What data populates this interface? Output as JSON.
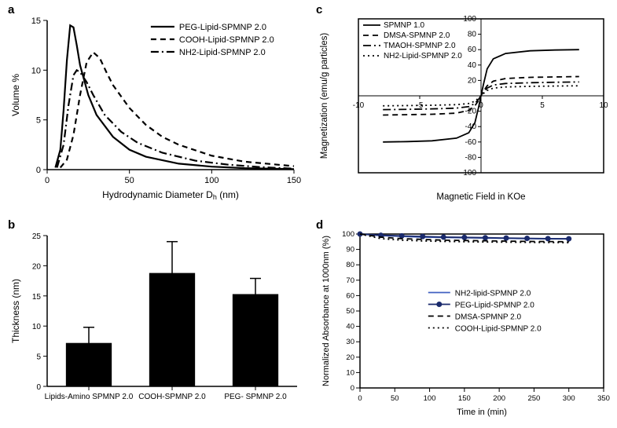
{
  "colors": {
    "background": "#ffffff",
    "axis": "#000000",
    "text": "#000000",
    "bar_fill": "#000000",
    "error_bar": "#000000",
    "line_black": "#000000",
    "line_blue": "#4060c0",
    "line_navy": "#1a2a6c"
  },
  "panel_label_fontsize": 15,
  "panel_a": {
    "label": "a",
    "type": "line",
    "xlabel": "Hydrodynamic Diameter D",
    "xlabel_sub": "h",
    "xlabel_unit": " (nm)",
    "ylabel": "Volume %",
    "xlim": [
      0,
      150
    ],
    "ylim": [
      0,
      15
    ],
    "xtick_step": 50,
    "ytick_step": 5,
    "axis_fontsize": 12,
    "tick_fontsize": 11,
    "legend_fontsize": 11,
    "line_width": 2.2,
    "series": [
      {
        "name": "PEG-Lipid-SPMNP 2.0",
        "dash": "solid",
        "color": "#000000",
        "points": [
          [
            5,
            0.2
          ],
          [
            8,
            2
          ],
          [
            10,
            6
          ],
          [
            12,
            11
          ],
          [
            14,
            14.5
          ],
          [
            16,
            14.3
          ],
          [
            18,
            12.5
          ],
          [
            20,
            10.5
          ],
          [
            25,
            7.5
          ],
          [
            30,
            5.5
          ],
          [
            40,
            3.3
          ],
          [
            50,
            2.0
          ],
          [
            60,
            1.3
          ],
          [
            80,
            0.6
          ],
          [
            100,
            0.3
          ],
          [
            120,
            0.15
          ],
          [
            150,
            0.05
          ]
        ]
      },
      {
        "name": "COOH-Lipid-SPMNP 2.0",
        "dash": "dashed",
        "color": "#000000",
        "points": [
          [
            8,
            0.2
          ],
          [
            12,
            1.0
          ],
          [
            16,
            3.5
          ],
          [
            20,
            7.5
          ],
          [
            24,
            10.8
          ],
          [
            28,
            11.8
          ],
          [
            32,
            11.2
          ],
          [
            36,
            9.8
          ],
          [
            40,
            8.5
          ],
          [
            50,
            6.2
          ],
          [
            60,
            4.5
          ],
          [
            70,
            3.3
          ],
          [
            80,
            2.5
          ],
          [
            100,
            1.4
          ],
          [
            120,
            0.8
          ],
          [
            150,
            0.35
          ]
        ]
      },
      {
        "name": "NH2-Lipid-SPMNP 2.0",
        "dash": "dashdot",
        "color": "#000000",
        "points": [
          [
            6,
            0.2
          ],
          [
            10,
            2.5
          ],
          [
            13,
            6.5
          ],
          [
            16,
            9.5
          ],
          [
            18,
            10.0
          ],
          [
            20,
            9.8
          ],
          [
            24,
            8.8
          ],
          [
            28,
            7.5
          ],
          [
            35,
            5.5
          ],
          [
            45,
            3.8
          ],
          [
            55,
            2.7
          ],
          [
            70,
            1.7
          ],
          [
            90,
            0.9
          ],
          [
            110,
            0.5
          ],
          [
            130,
            0.25
          ],
          [
            150,
            0.1
          ]
        ]
      }
    ]
  },
  "panel_b": {
    "label": "b",
    "type": "bar",
    "ylabel": "Thickness (nm)",
    "ylim": [
      0,
      25
    ],
    "ytick_step": 5,
    "axis_fontsize": 12,
    "tick_fontsize": 10,
    "bar_width": 0.55,
    "categories": [
      "Lipids-Amino SPMNP 2.0",
      "COOH-SPMNP 2.0",
      "PEG- SPMNP 2.0"
    ],
    "values": [
      7.2,
      18.8,
      15.3
    ],
    "errors": [
      2.6,
      5.2,
      2.6
    ],
    "bar_color": "#000000"
  },
  "panel_c": {
    "label": "c",
    "type": "line",
    "xlabel": "Magnetic Field in KOe",
    "ylabel": "Magnetization (emu/g particles)",
    "xlim": [
      -10,
      10
    ],
    "ylim": [
      -100,
      100
    ],
    "xtick_step": 5,
    "ytick_step": 20,
    "axis_fontsize": 11.5,
    "tick_fontsize": 10,
    "legend_fontsize": 10,
    "line_width": 1.8,
    "legend": [
      "SPMNP 1.0",
      "DMSA-SPMNP 2.0",
      "TMAOH-SPMNP 2.0",
      "NH2-Lipid-SPMNP 2.0"
    ],
    "series": [
      {
        "name": "SPMNP 1.0",
        "dash": "solid",
        "color": "#000000",
        "points": [
          [
            -8,
            -60
          ],
          [
            -6,
            -59.5
          ],
          [
            -4,
            -58.5
          ],
          [
            -2,
            -55
          ],
          [
            -1,
            -48
          ],
          [
            -0.5,
            -35
          ],
          [
            -0.2,
            -15
          ],
          [
            0,
            0
          ],
          [
            0.2,
            15
          ],
          [
            0.5,
            35
          ],
          [
            1,
            48
          ],
          [
            2,
            55
          ],
          [
            4,
            58.5
          ],
          [
            6,
            59.5
          ],
          [
            8,
            60
          ]
        ]
      },
      {
        "name": "DMSA-SPMNP 2.0",
        "dash": "dashed",
        "color": "#000000",
        "points": [
          [
            -8,
            -25
          ],
          [
            -6,
            -24.5
          ],
          [
            -4,
            -24
          ],
          [
            -2,
            -22.5
          ],
          [
            -1,
            -19
          ],
          [
            -0.5,
            -13
          ],
          [
            -0.2,
            -6
          ],
          [
            0,
            0
          ],
          [
            0.2,
            6
          ],
          [
            0.5,
            13
          ],
          [
            1,
            19
          ],
          [
            2,
            22.5
          ],
          [
            4,
            24
          ],
          [
            6,
            24.5
          ],
          [
            8,
            25
          ]
        ]
      },
      {
        "name": "TMAOH-SPMNP 2.0",
        "dash": "dashdot",
        "color": "#000000",
        "points": [
          [
            -8,
            -18
          ],
          [
            -6,
            -17.6
          ],
          [
            -4,
            -17
          ],
          [
            -2,
            -16
          ],
          [
            -1,
            -14
          ],
          [
            -0.5,
            -10
          ],
          [
            -0.2,
            -4.5
          ],
          [
            0,
            0
          ],
          [
            0.2,
            4.5
          ],
          [
            0.5,
            10
          ],
          [
            1,
            14
          ],
          [
            2,
            16
          ],
          [
            4,
            17
          ],
          [
            6,
            17.6
          ],
          [
            8,
            18
          ]
        ]
      },
      {
        "name": "NH2-Lipid-SPMNP 2.0",
        "dash": "dotted",
        "color": "#000000",
        "points": [
          [
            -8,
            -13
          ],
          [
            -6,
            -12.7
          ],
          [
            -4,
            -12.3
          ],
          [
            -2,
            -11.5
          ],
          [
            -1,
            -10
          ],
          [
            -0.5,
            -7
          ],
          [
            -0.2,
            -3
          ],
          [
            0,
            0
          ],
          [
            0.2,
            3
          ],
          [
            0.5,
            7
          ],
          [
            1,
            10
          ],
          [
            2,
            11.5
          ],
          [
            4,
            12.3
          ],
          [
            6,
            12.7
          ],
          [
            8,
            13
          ]
        ]
      }
    ]
  },
  "panel_d": {
    "label": "d",
    "type": "line",
    "xlabel": "Time in (min)",
    "ylabel": "Normalized Absorbance at 1000nm (%)",
    "xlim": [
      0,
      350
    ],
    "ylim": [
      0,
      100
    ],
    "xtick_step": 50,
    "ytick_step": 10,
    "axis_fontsize": 11,
    "tick_fontsize": 9.5,
    "legend_fontsize": 10,
    "line_width": 1.8,
    "marker_size": 3.5,
    "series": [
      {
        "name": "NH2-lipid-SPMNP 2.0",
        "dash": "solid",
        "color": "#4060c0",
        "marker": "none",
        "points": [
          [
            0,
            100
          ],
          [
            30,
            99
          ],
          [
            60,
            98.5
          ],
          [
            90,
            98
          ],
          [
            120,
            97.8
          ],
          [
            150,
            97.6
          ],
          [
            180,
            97.4
          ],
          [
            210,
            97.2
          ],
          [
            240,
            97
          ],
          [
            270,
            96.9
          ],
          [
            300,
            96.8
          ]
        ]
      },
      {
        "name": "PEG-Lipid-SPMNP 2.0",
        "dash": "solid",
        "color": "#1a2a6c",
        "marker": "circle",
        "points": [
          [
            0,
            100
          ],
          [
            30,
            99.2
          ],
          [
            60,
            98.8
          ],
          [
            90,
            98.4
          ],
          [
            120,
            98
          ],
          [
            150,
            97.8
          ],
          [
            180,
            97.6
          ],
          [
            210,
            97.4
          ],
          [
            240,
            97.2
          ],
          [
            270,
            97
          ],
          [
            300,
            96.9
          ]
        ]
      },
      {
        "name": "DMSA-SPMNP 2.0",
        "dash": "dashed",
        "color": "#000000",
        "marker": "none",
        "points": [
          [
            0,
            100
          ],
          [
            30,
            98
          ],
          [
            60,
            97
          ],
          [
            90,
            96.5
          ],
          [
            120,
            96
          ],
          [
            150,
            95.8
          ],
          [
            180,
            95.6
          ],
          [
            210,
            95.4
          ],
          [
            240,
            95.2
          ],
          [
            270,
            95.1
          ],
          [
            300,
            95
          ]
        ]
      },
      {
        "name": "COOH-Lipid-SPMNP 2.0",
        "dash": "dotted",
        "color": "#000000",
        "marker": "none",
        "points": [
          [
            0,
            100
          ],
          [
            30,
            97
          ],
          [
            60,
            96
          ],
          [
            90,
            95.5
          ],
          [
            120,
            95.2
          ],
          [
            150,
            95
          ],
          [
            180,
            94.8
          ],
          [
            210,
            94.7
          ],
          [
            240,
            94.6
          ],
          [
            270,
            94.5
          ],
          [
            300,
            94.4
          ]
        ]
      }
    ]
  }
}
